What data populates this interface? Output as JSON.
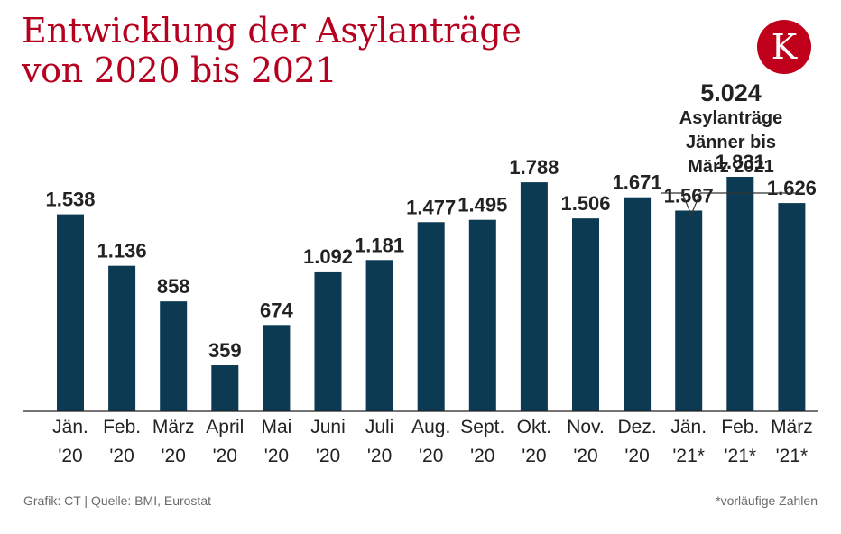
{
  "title_line1": "Entwicklung der Asylanträge",
  "title_line2": "von 2020 bis 2021",
  "logo_letter": "K",
  "callout": {
    "value": "5.024",
    "text": "Asylanträge Jänner bis März 2021"
  },
  "source": "Grafik: CT | Quelle: BMI, Eurostat",
  "footnote": "*vorläufige Zahlen",
  "colors": {
    "bar": "#0b3a52",
    "title": "#b5001f",
    "logo": "#c0001a"
  },
  "chart_data": {
    "type": "bar",
    "title": "Entwicklung der Asylanträge von 2020 bis 2021",
    "xlabel": "",
    "ylabel": "",
    "ylim": [
      0,
      2000
    ],
    "grid": false,
    "categories": [
      {
        "month": "Jän.",
        "year": "'20"
      },
      {
        "month": "Feb.",
        "year": "'20"
      },
      {
        "month": "März",
        "year": "'20"
      },
      {
        "month": "April",
        "year": "'20"
      },
      {
        "month": "Mai",
        "year": "'20"
      },
      {
        "month": "Juni",
        "year": "'20"
      },
      {
        "month": "Juli",
        "year": "'20"
      },
      {
        "month": "Aug.",
        "year": "'20"
      },
      {
        "month": "Sept.",
        "year": "'20"
      },
      {
        "month": "Okt.",
        "year": "'20"
      },
      {
        "month": "Nov.",
        "year": "'20"
      },
      {
        "month": "Dez.",
        "year": "'20"
      },
      {
        "month": "Jän.",
        "year": "'21*"
      },
      {
        "month": "Feb.",
        "year": "'21*"
      },
      {
        "month": "März",
        "year": "'21*"
      }
    ],
    "values": [
      1538,
      1136,
      858,
      359,
      674,
      1092,
      1181,
      1477,
      1495,
      1788,
      1506,
      1671,
      1567,
      1831,
      1626
    ],
    "value_labels": [
      "1.538",
      "1.136",
      "858",
      "359",
      "674",
      "1.092",
      "1.181",
      "1.477",
      "1.495",
      "1.788",
      "1.506",
      "1.671",
      "1.567",
      "1.831",
      "1.626"
    ]
  }
}
